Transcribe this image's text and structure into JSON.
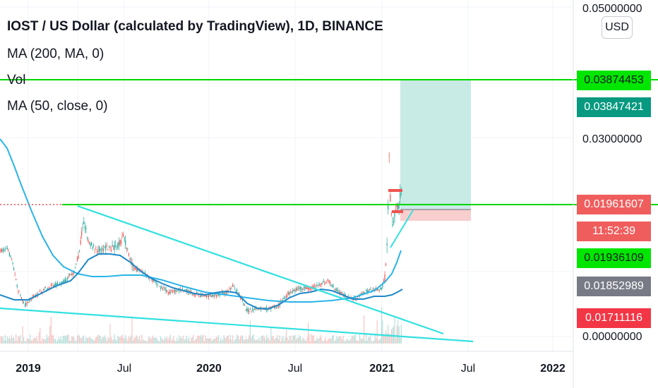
{
  "chart_data": {
    "type": "candlestick",
    "title": "IOST / US Dollar (calculated by TradingView), 1D, BINANCE",
    "indicators": [
      "MA (200, MA, 0)",
      "Vol",
      "MA (50, close, 0)"
    ],
    "currency_button": "USD",
    "y_ticks": [
      "0.05000000",
      "0.03000000",
      "0.00000000"
    ],
    "x_ticks": [
      {
        "label": "2019",
        "year": true
      },
      {
        "label": "Jul",
        "year": false
      },
      {
        "label": "2020",
        "year": true
      },
      {
        "label": "Jul",
        "year": false
      },
      {
        "label": "2021",
        "year": true
      },
      {
        "label": "Jul",
        "year": false
      },
      {
        "label": "2022",
        "year": true
      }
    ],
    "price_tags": [
      {
        "label": "0.03874453",
        "bg": "#00e600",
        "fg": "#131722"
      },
      {
        "label": "0.03847421",
        "bg": "#089981",
        "fg": "#ffffff"
      },
      {
        "label": "0.01961607",
        "bg": "#f05d5d",
        "fg": "#ffffff"
      },
      {
        "label": "11:52:39",
        "bg": "#f05d5d",
        "fg": "#ffffff"
      },
      {
        "label": "0.01936109",
        "bg": "#00e600",
        "fg": "#131722"
      },
      {
        "label": "0.01852989",
        "bg": "#787b86",
        "fg": "#ffffff"
      },
      {
        "label": "0.01711116",
        "bg": "#f23645",
        "fg": "#ffffff"
      }
    ],
    "colors": {
      "up": "#26a69a",
      "down": "#ef5350",
      "ma200": "#2ab4e8",
      "ma50": "#1e88c8",
      "trendline": "#33e0e0",
      "horizontal": "#00d600",
      "target_zone": "#b5e4de",
      "stop_zone": "#f7c6c6"
    }
  }
}
